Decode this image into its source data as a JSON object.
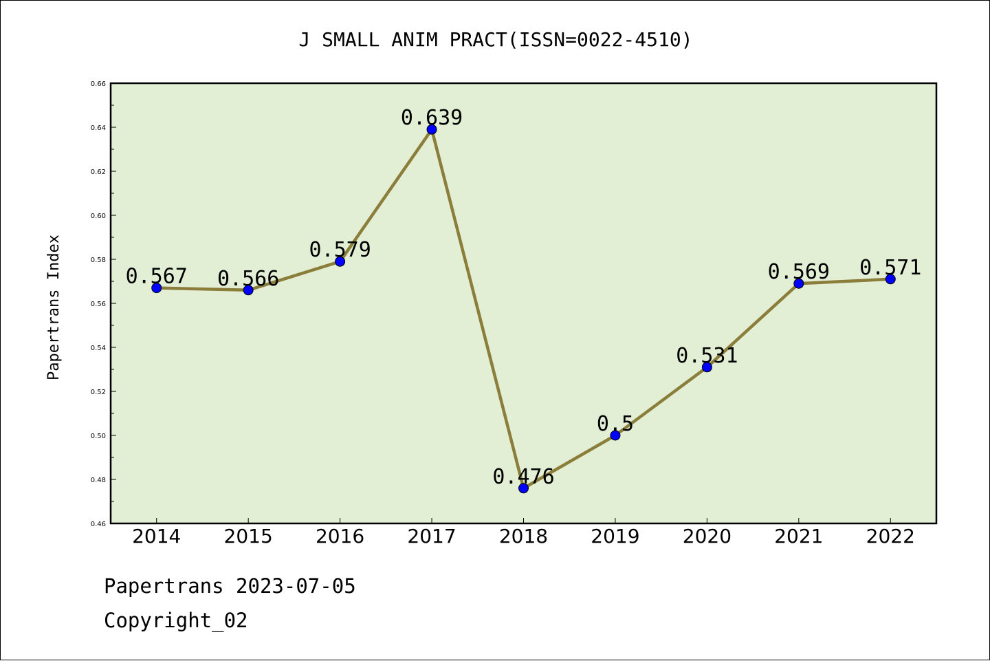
{
  "chart_data": {
    "type": "line",
    "title": "J SMALL ANIM PRACT(ISSN=0022-4510)",
    "xlabel": "",
    "ylabel": "Papertrans Index",
    "categories": [
      "2014",
      "2015",
      "2016",
      "2017",
      "2018",
      "2019",
      "2020",
      "2021",
      "2022"
    ],
    "series": [
      {
        "values": [
          0.567,
          0.566,
          0.579,
          0.639,
          0.476,
          0.5,
          0.531,
          0.569,
          0.571
        ],
        "data_labels": [
          "0.567",
          "0.566",
          "0.579",
          "0.639",
          "0.476",
          "0.5",
          "0.531",
          "0.569",
          "0.571"
        ]
      }
    ],
    "ylim": [
      0.46,
      0.66
    ],
    "yticks": [
      "0.46",
      "0.48",
      "0.50",
      "0.52",
      "0.54",
      "0.56",
      "0.58",
      "0.60",
      "0.62",
      "0.64",
      "0.66"
    ],
    "grid": false,
    "legend": "none",
    "colors": {
      "line": "#8b7d3a",
      "marker": "#0000ff",
      "plot_background": "#e2efd5"
    }
  },
  "footer": {
    "source": "Papertrans 2023-07-05",
    "copyright": "Copyright_02"
  }
}
